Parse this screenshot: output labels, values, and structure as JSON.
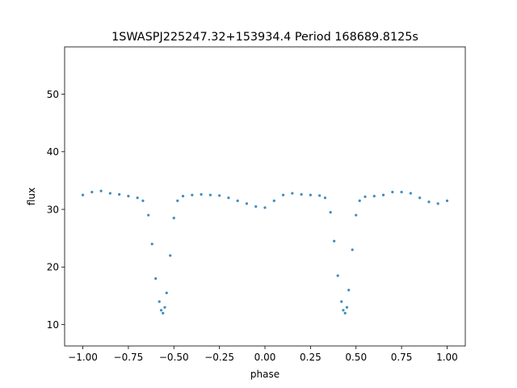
{
  "chart_data": {
    "type": "scatter",
    "title": "1SWASPJ225247.32+153934.4 Period 168689.8125s",
    "xlabel": "phase",
    "ylabel": "flux",
    "xlim": [
      -1.1,
      1.1
    ],
    "ylim": [
      6.3,
      58.2
    ],
    "xticks": [
      -1.0,
      -0.75,
      -0.5,
      -0.25,
      0.0,
      0.25,
      0.5,
      0.75,
      1.0
    ],
    "xtick_labels": [
      "−1.00",
      "−0.75",
      "−0.50",
      "−0.25",
      "0.00",
      "0.25",
      "0.50",
      "0.75",
      "1.00"
    ],
    "yticks": [
      10,
      20,
      30,
      40,
      50
    ],
    "ytick_labels": [
      "10",
      "20",
      "30",
      "40",
      "50"
    ],
    "grid": false,
    "marker_color": "#1f77b4",
    "series": [
      {
        "x": [
          -1.0,
          -0.95,
          -0.9,
          -0.85,
          -0.8,
          -0.75,
          -0.7,
          -0.67,
          -0.64,
          -0.62,
          -0.6,
          -0.58,
          -0.57,
          -0.56,
          -0.55,
          -0.54,
          -0.52,
          -0.5,
          -0.48,
          -0.45,
          -0.4,
          -0.35,
          -0.3,
          -0.25,
          -0.2,
          -0.15,
          -0.1,
          -0.05,
          0.0,
          0.05,
          0.1,
          0.15,
          0.2,
          0.25,
          0.3,
          0.33,
          0.36,
          0.38,
          0.4,
          0.42,
          0.43,
          0.44,
          0.45,
          0.46,
          0.48,
          0.5,
          0.52,
          0.55,
          0.6,
          0.65,
          0.7,
          0.75,
          0.8,
          0.85,
          0.9,
          0.95,
          1.0
        ],
        "y": [
          32.5,
          33.0,
          33.2,
          32.8,
          32.6,
          32.3,
          32.0,
          31.5,
          29.0,
          24.0,
          18.0,
          14.0,
          12.5,
          12.0,
          13.0,
          15.5,
          22.0,
          28.5,
          31.5,
          32.3,
          32.5,
          32.6,
          32.5,
          32.4,
          32.0,
          31.5,
          31.0,
          30.5,
          30.3,
          31.5,
          32.5,
          32.8,
          32.6,
          32.5,
          32.4,
          32.0,
          29.5,
          24.5,
          18.5,
          14.0,
          12.5,
          12.0,
          13.0,
          16.0,
          23.0,
          29.0,
          31.5,
          32.2,
          32.3,
          32.5,
          33.0,
          33.0,
          32.8,
          32.0,
          31.3,
          31.0,
          31.5
        ]
      }
    ]
  }
}
